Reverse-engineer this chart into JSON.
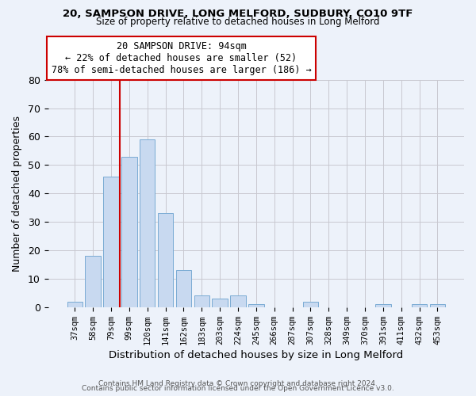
{
  "title1": "20, SAMPSON DRIVE, LONG MELFORD, SUDBURY, CO10 9TF",
  "title2": "Size of property relative to detached houses in Long Melford",
  "xlabel": "Distribution of detached houses by size in Long Melford",
  "ylabel": "Number of detached properties",
  "bar_color": "#c8d9f0",
  "bar_edge_color": "#7aabd4",
  "bg_color": "#edf2fa",
  "grid_color": "#c8c8d0",
  "categories": [
    "37sqm",
    "58sqm",
    "79sqm",
    "99sqm",
    "120sqm",
    "141sqm",
    "162sqm",
    "183sqm",
    "203sqm",
    "224sqm",
    "245sqm",
    "266sqm",
    "287sqm",
    "307sqm",
    "328sqm",
    "349sqm",
    "370sqm",
    "391sqm",
    "411sqm",
    "432sqm",
    "453sqm"
  ],
  "values": [
    2,
    18,
    46,
    53,
    59,
    33,
    13,
    4,
    3,
    4,
    1,
    0,
    0,
    2,
    0,
    0,
    0,
    1,
    0,
    1,
    1
  ],
  "vline_x": 2.5,
  "vline_color": "#cc0000",
  "annotation_title": "20 SAMPSON DRIVE: 94sqm",
  "annotation_line1": "← 22% of detached houses are smaller (52)",
  "annotation_line2": "78% of semi-detached houses are larger (186) →",
  "annotation_box_color": "#ffffff",
  "annotation_box_edge": "#cc0000",
  "ylim": [
    0,
    80
  ],
  "yticks": [
    0,
    10,
    20,
    30,
    40,
    50,
    60,
    70,
    80
  ],
  "footer1": "Contains HM Land Registry data © Crown copyright and database right 2024.",
  "footer2": "Contains public sector information licensed under the Open Government Licence v3.0."
}
